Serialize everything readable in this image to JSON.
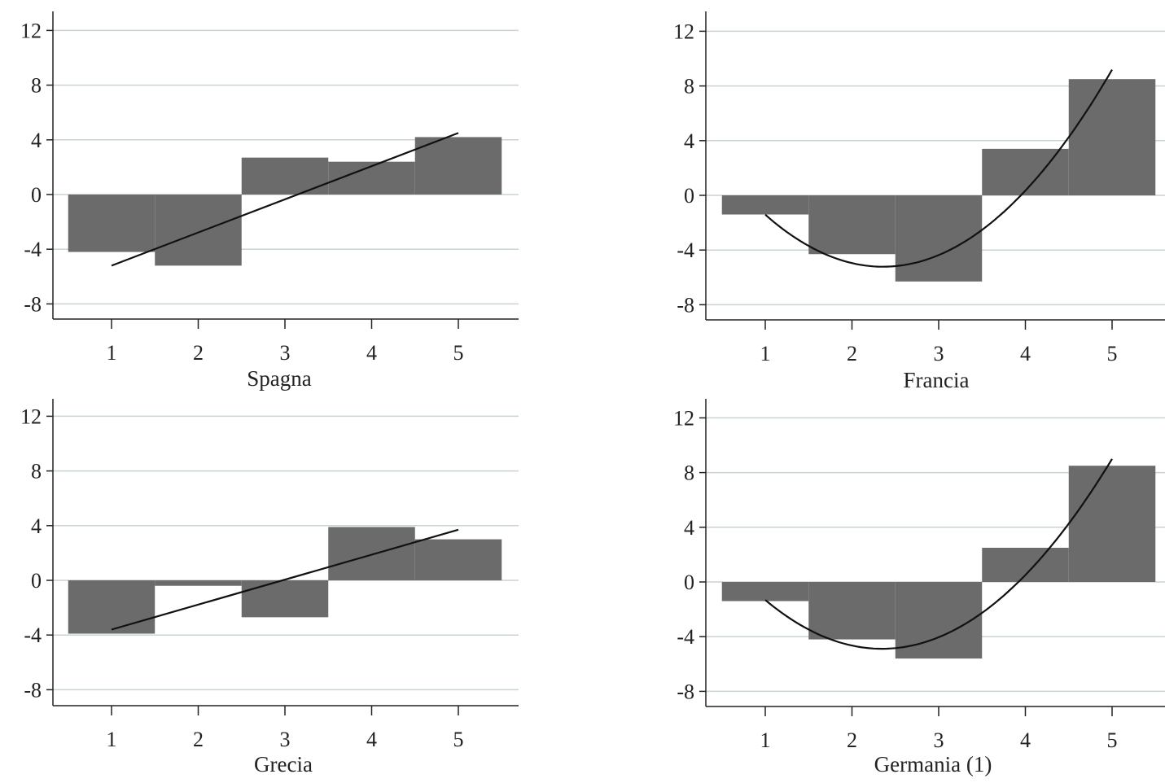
{
  "figure": {
    "colors": {
      "bar": "#6b6b6b",
      "grid": "#c9d3d6",
      "axis": "#222222",
      "curve": "#111111"
    }
  },
  "chart_data": [
    {
      "type": "bar",
      "title": "Spagna",
      "categories": [
        "1",
        "2",
        "3",
        "4",
        "5"
      ],
      "values": [
        -4.2,
        -5.2,
        2.7,
        2.4,
        4.2
      ],
      "trend": {
        "type": "line",
        "x": [
          1,
          5
        ],
        "y": [
          -5.2,
          4.5
        ]
      },
      "yticks": [
        "12",
        "8",
        "4",
        "0",
        "-4",
        "-8"
      ],
      "ylim": [
        -9,
        12.5
      ],
      "grid": true
    },
    {
      "type": "bar",
      "title": "Francia",
      "categories": [
        "1",
        "2",
        "3",
        "4",
        "5"
      ],
      "values": [
        -1.4,
        -4.3,
        -6.3,
        3.4,
        8.5
      ],
      "trend": {
        "type": "quadratic",
        "x": [
          1,
          2,
          3,
          4,
          5
        ],
        "y": [
          -1.6,
          -4.6,
          -4.3,
          -0.1,
          9.4
        ]
      },
      "yticks": [
        "12",
        "8",
        "4",
        "0",
        "-4",
        "-8"
      ],
      "ylim": [
        -9,
        12.5
      ],
      "grid": true
    },
    {
      "type": "bar",
      "title": "Grecia",
      "categories": [
        "1",
        "2",
        "3",
        "4",
        "5"
      ],
      "values": [
        -3.9,
        -0.4,
        -2.7,
        3.9,
        3.0
      ],
      "trend": {
        "type": "line",
        "x": [
          1,
          5
        ],
        "y": [
          -3.6,
          3.7
        ]
      },
      "yticks": [
        "12",
        "8",
        "4",
        "0",
        "-4",
        "-8"
      ],
      "ylim": [
        -9,
        12.5
      ],
      "grid": true
    },
    {
      "type": "bar",
      "title": "Germania (1)",
      "categories": [
        "1",
        "2",
        "3",
        "4",
        "5"
      ],
      "values": [
        -1.4,
        -4.2,
        -5.6,
        2.5,
        8.5
      ],
      "trend": {
        "type": "quadratic",
        "x": [
          1,
          2,
          3,
          4,
          5
        ],
        "y": [
          -1.5,
          -4.3,
          -4.0,
          0.1,
          9.2
        ]
      },
      "yticks": [
        "12",
        "8",
        "4",
        "0",
        "-4",
        "-8"
      ],
      "ylim": [
        -9,
        12.5
      ],
      "grid": true
    }
  ]
}
